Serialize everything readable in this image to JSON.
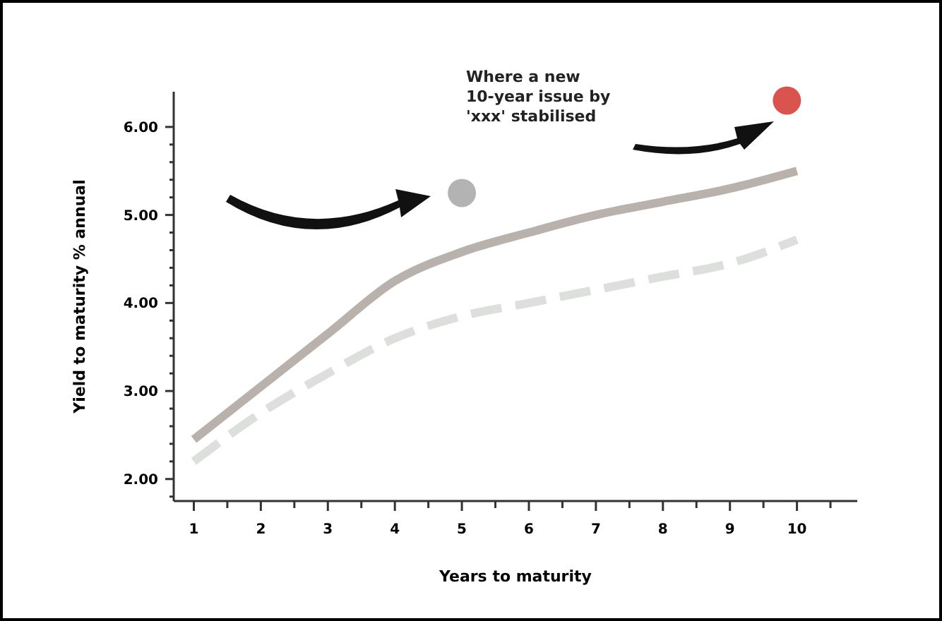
{
  "chart_data": {
    "type": "line",
    "xlabel": "Years to maturity",
    "ylabel": "Yield to maturity % annual",
    "x": [
      1,
      2,
      3,
      4,
      5,
      6,
      7,
      8,
      9,
      10
    ],
    "xlim": [
      0.7,
      10.9
    ],
    "xticks": [
      1,
      {
        "value": 1.5,
        "label": null
      },
      2,
      {
        "value": 2.5,
        "label": null
      },
      3,
      {
        "value": 3.5,
        "label": null
      },
      4,
      {
        "value": 4.5,
        "label": null
      },
      5,
      {
        "value": 5.5,
        "label": null
      },
      6,
      {
        "value": 6.5,
        "label": null
      },
      7,
      {
        "value": 7.5,
        "label": null
      },
      8,
      {
        "value": 8.5,
        "label": null
      },
      9,
      {
        "value": 9.5,
        "label": null
      },
      10,
      {
        "value": 10.5,
        "label": null
      }
    ],
    "ylim": [
      1.75,
      6.4
    ],
    "yticks": [
      {
        "value": 1.8,
        "label": null
      },
      {
        "value": 2,
        "label": "2.00"
      },
      {
        "value": 2.2,
        "label": null
      },
      {
        "value": 2.4,
        "label": null
      },
      {
        "value": 2.6,
        "label": null
      },
      {
        "value": 2.8,
        "label": null
      },
      {
        "value": 3,
        "label": "3.00"
      },
      {
        "value": 3.2,
        "label": null
      },
      {
        "value": 3.4,
        "label": null
      },
      {
        "value": 3.6,
        "label": null
      },
      {
        "value": 3.8,
        "label": null
      },
      {
        "value": 4,
        "label": "4.00"
      },
      {
        "value": 4.2,
        "label": null
      },
      {
        "value": 4.4,
        "label": null
      },
      {
        "value": 4.6,
        "label": null
      },
      {
        "value": 4.8,
        "label": null
      },
      {
        "value": 5,
        "label": "5.00"
      },
      {
        "value": 5.2,
        "label": null
      },
      {
        "value": 5.4,
        "label": null
      },
      {
        "value": 5.6,
        "label": null
      },
      {
        "value": 5.8,
        "label": null
      },
      {
        "value": 6,
        "label": "6.00"
      }
    ],
    "grid": false,
    "marker": "none",
    "series": [
      {
        "color": "#b9b1ab",
        "line_style": "solid",
        "values": [
          2.45,
          3.05,
          3.65,
          4.25,
          4.58,
          4.8,
          5.0,
          5.15,
          5.3,
          5.5
        ]
      },
      {
        "color": "#dcdfdc",
        "line_style": "dashed",
        "values": [
          2.2,
          2.75,
          3.2,
          3.6,
          3.85,
          4.0,
          4.15,
          4.3,
          4.45,
          4.72
        ]
      },
      {
        "type": "scatter",
        "x": [
          5,
          9.85
        ],
        "values": [
          5.25,
          6.3
        ],
        "colors": [
          "#b3b3b3",
          "#d9534f"
        ],
        "marker": "circle"
      }
    ],
    "annotations": [
      "Where a new\n10-year issue by\n'xxx' stabilised"
    ]
  }
}
